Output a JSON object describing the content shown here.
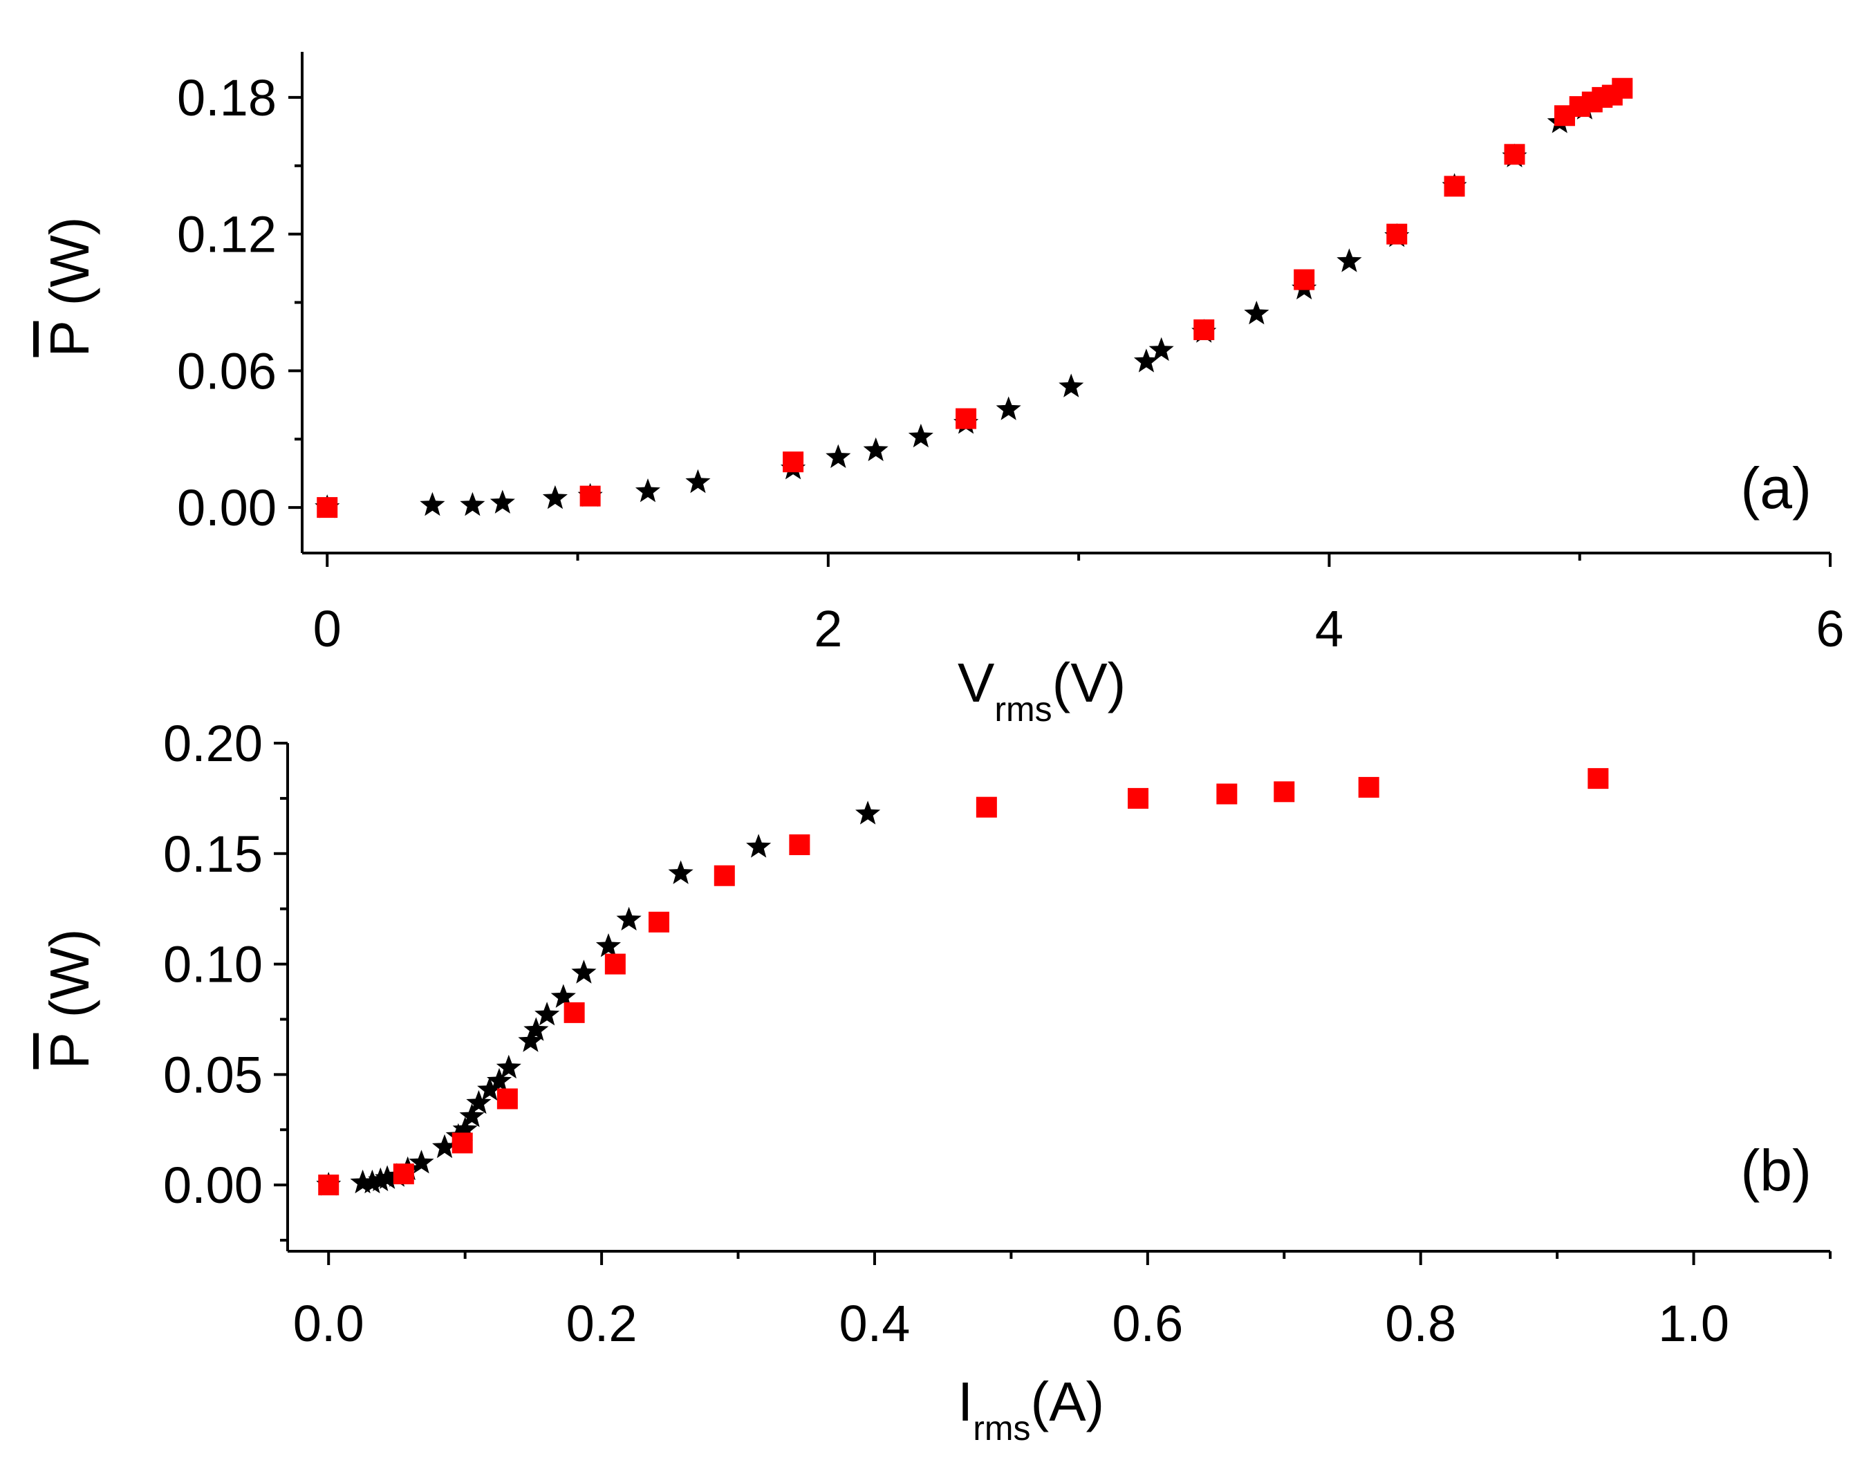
{
  "colors": {
    "axis": "#000000",
    "star_series": "#000000",
    "square_series": "#ff0000"
  },
  "chart_data": [
    {
      "type": "scatter",
      "panel_label": "(a)",
      "xlabel_main": "V",
      "xlabel_sub": "rms",
      "xlabel_unit": "(V)",
      "ylabel_main": "P",
      "ylabel_unit": " (W)",
      "xlim": [
        -0.1,
        6.0
      ],
      "ylim": [
        -0.02,
        0.2
      ],
      "xticks": [
        0,
        2,
        4,
        6
      ],
      "xtick_labels": [
        "0",
        "2",
        "4",
        "6"
      ],
      "xminor": [
        1,
        3,
        5
      ],
      "yticks": [
        0.0,
        0.06,
        0.12,
        0.18
      ],
      "ytick_labels": [
        "0.00",
        "0.06",
        "0.12",
        "0.18"
      ],
      "yminor": [
        0.03,
        0.09,
        0.15
      ],
      "series": [
        {
          "name": "stars",
          "marker": "star",
          "x": [
            0.0,
            0.42,
            0.58,
            0.7,
            0.91,
            1.05,
            1.28,
            1.48,
            1.86,
            2.04,
            2.19,
            2.37,
            2.55,
            2.72,
            2.97,
            3.27,
            3.33,
            3.5,
            3.71,
            3.9,
            4.08,
            4.27,
            4.5,
            4.74,
            4.92,
            5.02
          ],
          "y": [
            0.0,
            0.001,
            0.001,
            0.002,
            0.004,
            0.005,
            0.007,
            0.011,
            0.017,
            0.022,
            0.025,
            0.031,
            0.037,
            0.043,
            0.053,
            0.064,
            0.069,
            0.077,
            0.085,
            0.096,
            0.108,
            0.119,
            0.141,
            0.154,
            0.169,
            0.175
          ]
        },
        {
          "name": "squares",
          "marker": "square",
          "x": [
            0.0,
            1.05,
            1.86,
            2.55,
            3.5,
            3.9,
            4.27,
            4.5,
            4.74,
            4.94,
            5.0,
            5.05,
            5.09,
            5.13,
            5.17
          ],
          "y": [
            0.0,
            0.005,
            0.02,
            0.039,
            0.078,
            0.1,
            0.12,
            0.141,
            0.155,
            0.172,
            0.176,
            0.178,
            0.18,
            0.181,
            0.184
          ]
        }
      ]
    },
    {
      "type": "scatter",
      "panel_label": "(b)",
      "xlabel_main": "I",
      "xlabel_sub": "rms",
      "xlabel_unit": "(A)",
      "ylabel_main": "P",
      "ylabel_unit": " (W)",
      "xlim": [
        -0.03,
        1.1
      ],
      "ylim": [
        -0.03,
        0.2
      ],
      "xticks": [
        0.0,
        0.2,
        0.4,
        0.6,
        0.8,
        1.0
      ],
      "xtick_labels": [
        "0.0",
        "0.2",
        "0.4",
        "0.6",
        "0.8",
        "1.0"
      ],
      "xminor": [
        0.1,
        0.3,
        0.5,
        0.7,
        0.9,
        1.1
      ],
      "yticks": [
        0.0,
        0.05,
        0.1,
        0.15,
        0.2
      ],
      "ytick_labels": [
        "0.00",
        "0.05",
        "0.10",
        "0.15",
        "0.20"
      ],
      "yminor": [
        -0.025,
        0.025,
        0.075,
        0.125,
        0.175
      ],
      "series": [
        {
          "name": "stars",
          "marker": "star",
          "x": [
            0.0,
            0.025,
            0.032,
            0.038,
            0.043,
            0.05,
            0.058,
            0.068,
            0.085,
            0.095,
            0.1,
            0.105,
            0.11,
            0.118,
            0.125,
            0.132,
            0.148,
            0.152,
            0.16,
            0.172,
            0.187,
            0.205,
            0.22,
            0.258,
            0.315,
            0.395
          ],
          "y": [
            0.0,
            0.001,
            0.001,
            0.002,
            0.003,
            0.004,
            0.007,
            0.01,
            0.017,
            0.022,
            0.025,
            0.031,
            0.037,
            0.043,
            0.047,
            0.053,
            0.065,
            0.07,
            0.077,
            0.085,
            0.096,
            0.108,
            0.12,
            0.141,
            0.153,
            0.168
          ]
        },
        {
          "name": "squares",
          "marker": "square",
          "x": [
            0.0,
            0.055,
            0.098,
            0.131,
            0.18,
            0.21,
            0.242,
            0.29,
            0.345,
            0.482,
            0.593,
            0.658,
            0.7,
            0.762,
            0.93
          ],
          "y": [
            0.0,
            0.005,
            0.019,
            0.039,
            0.078,
            0.1,
            0.119,
            0.14,
            0.154,
            0.171,
            0.175,
            0.177,
            0.178,
            0.18,
            0.184
          ]
        }
      ]
    }
  ]
}
